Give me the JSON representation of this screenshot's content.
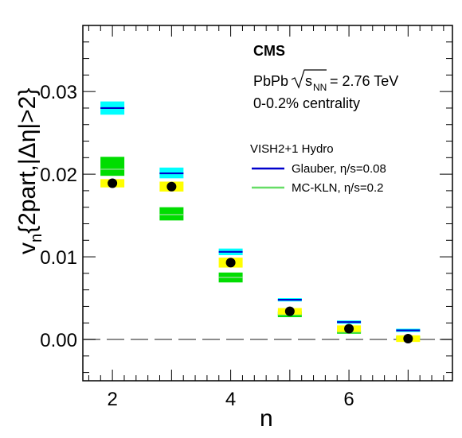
{
  "chart_data": {
    "type": "scatter",
    "title": "CMS",
    "info": {
      "system": "PbPb",
      "energy_label": "= 2.76 TeV",
      "centrality": "0-0.2% centrality"
    },
    "xlabel": "n",
    "ylabel": "v{2part,|Δη|>2}",
    "xlim": [
      1.5,
      7.75
    ],
    "ylim": [
      -0.005,
      0.038
    ],
    "x_ticks": [
      "2",
      "4",
      "6"
    ],
    "y_ticks": [
      "0.00",
      "0.01",
      "0.02",
      "0.03"
    ],
    "grid": false,
    "legend": {
      "header": "VISH2+1 Hydro",
      "entries": [
        "Glauber, η/s=0.08",
        "MC-KLN, η/s=0.2"
      ],
      "position": "top-right"
    },
    "colors": {
      "data": "#000000",
      "data_sys_band": "#ffff00",
      "glauber_line": "#0000cc",
      "glauber_band": "#00ffff",
      "mckln_line": "#66dd66",
      "mckln_band": "#00dd00",
      "zero_line": "#666666"
    },
    "series": [
      {
        "name": "data",
        "x": [
          2,
          3,
          4,
          5,
          6,
          7
        ],
        "y": [
          0.0189,
          0.0185,
          0.0093,
          0.0034,
          0.0013,
          0.0001
        ],
        "sys_low": [
          0.0184,
          0.0179,
          0.0087,
          0.003,
          0.0009,
          -0.0003
        ],
        "sys_high": [
          0.0194,
          0.0191,
          0.0099,
          0.0038,
          0.0017,
          0.0005
        ]
      },
      {
        "name": "Glauber, η/s=0.08",
        "x": [
          2,
          3,
          4,
          5,
          6,
          7
        ],
        "y": [
          0.028,
          0.0201,
          0.0106,
          0.0048,
          0.0021,
          0.0011
        ],
        "band_low": [
          0.0272,
          0.0195,
          0.0102,
          0.0046,
          0.0019,
          0.0009
        ],
        "band_high": [
          0.0288,
          0.0208,
          0.011,
          0.005,
          0.0023,
          0.0013
        ]
      },
      {
        "name": "MC-KLN, η/s=0.2",
        "x": [
          2,
          3,
          4,
          5,
          6,
          7
        ],
        "y": [
          0.0206,
          0.0151,
          0.0075,
          0.003,
          0.0009,
          0.0002
        ],
        "band_low": [
          0.0198,
          0.0144,
          0.0069,
          0.0027,
          0.0007,
          0.0
        ],
        "band_high": [
          0.0221,
          0.016,
          0.0081,
          0.0034,
          0.0011,
          0.0004
        ]
      }
    ]
  }
}
